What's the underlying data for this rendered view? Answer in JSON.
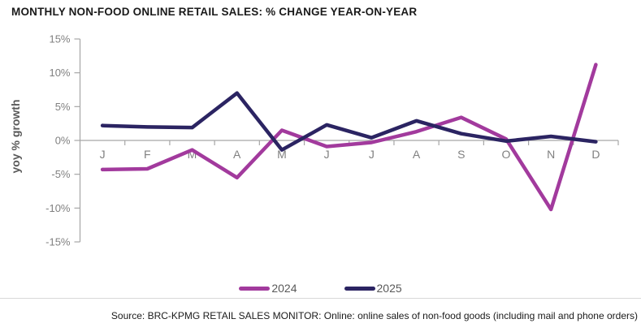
{
  "chart": {
    "title": "MONTHLY NON-FOOD ONLINE RETAIL SALES: % CHANGE YEAR-ON-YEAR"
  },
  "chart_data": {
    "type": "line",
    "title": "MONTHLY NON-FOOD ONLINE RETAIL SALES: % CHANGE YEAR-ON-YEAR",
    "categories": [
      "J",
      "F",
      "M",
      "A",
      "M",
      "J",
      "J",
      "A",
      "S",
      "O",
      "N",
      "D"
    ],
    "series": [
      {
        "name": "2024",
        "color": "#a23a9d",
        "values": [
          -4.3,
          -4.2,
          -1.4,
          -5.5,
          1.5,
          -0.9,
          -0.3,
          1.3,
          3.4,
          0.2,
          -10.2,
          11.2
        ]
      },
      {
        "name": "2025",
        "color": "#2b2462",
        "values": [
          2.2,
          2.0,
          1.9,
          7.0,
          -1.4,
          2.3,
          0.4,
          2.9,
          1.0,
          -0.1,
          0.6,
          -0.2
        ]
      }
    ],
    "xlabel": "",
    "ylabel": "yoy % growth",
    "ylim": [
      -15,
      15
    ],
    "y_ticks": [
      15,
      10,
      5,
      0,
      -5,
      -10,
      -15
    ],
    "y_tick_suffix": "%",
    "grid": false,
    "legend_position": "bottom"
  },
  "footer": {
    "source": "Source: BRC-KPMG RETAIL SALES MONITOR: Online: online sales of non-food goods (including mail and phone orders)"
  },
  "colors": {
    "series_2024": "#a23a9d",
    "series_2025": "#2b2462",
    "axis": "#a6a6a6",
    "tick_label": "#808080",
    "axis_title": "#595959",
    "title_text": "#1a1a1a",
    "separator": "#d9d9d9",
    "background": "#ffffff"
  }
}
